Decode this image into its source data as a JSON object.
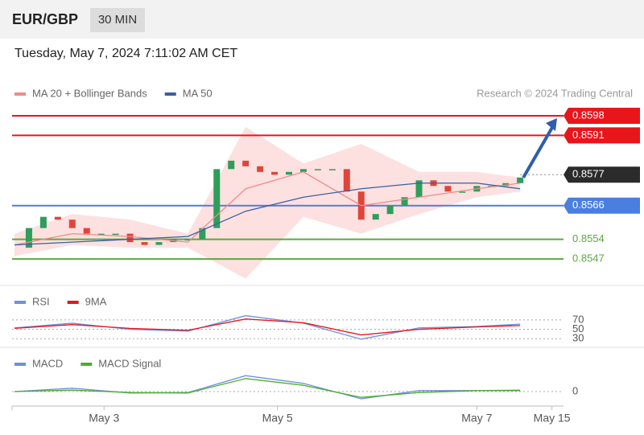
{
  "header": {
    "symbol": "EUR/GBP",
    "timeframe": "30 MIN",
    "timestamp": "Tuesday, May 7, 2024 7:11:02 AM CET"
  },
  "chart_data": [
    {
      "type": "candlestick",
      "source": "Research © 2024 Trading Central",
      "x": [
        0,
        1,
        2,
        3,
        4,
        5,
        6,
        7,
        8,
        9,
        10,
        11,
        12,
        13,
        14,
        15,
        16,
        17,
        18,
        19,
        20,
        21,
        22,
        23,
        24,
        25,
        26,
        27,
        28,
        29,
        30,
        31,
        32,
        33,
        34,
        35
      ],
      "close": [
        0.8551,
        0.8558,
        0.8562,
        0.8561,
        0.8558,
        0.8556,
        0.8556,
        0.8556,
        0.8553,
        0.8552,
        0.8553,
        0.8554,
        0.8554,
        0.8558,
        0.8579,
        0.8582,
        0.858,
        0.8578,
        0.8577,
        0.8578,
        0.8579,
        0.8579,
        0.8579,
        0.8571,
        0.8561,
        0.8563,
        0.8566,
        0.8569,
        0.8575,
        0.8573,
        0.8571,
        0.8571,
        0.8573,
        0.8573,
        0.8574,
        0.8576
      ],
      "up_color": "#2e9e5b",
      "down_color": "#e0453a",
      "series": [
        {
          "name": "MA 20 + Bollinger Bands",
          "color": "#f08a8a",
          "band_color": "#fde0e0",
          "x": [
            0,
            4,
            8,
            12,
            16,
            20,
            24,
            28,
            32,
            35
          ],
          "values": [
            0.8552,
            0.8556,
            0.8555,
            0.8553,
            0.8572,
            0.8578,
            0.8566,
            0.8569,
            0.8572,
            0.8574
          ],
          "upper": [
            0.8556,
            0.8563,
            0.8561,
            0.8556,
            0.8594,
            0.8581,
            0.8588,
            0.8578,
            0.8578,
            0.8576
          ],
          "lower": [
            0.8548,
            0.8552,
            0.8551,
            0.8551,
            0.854,
            0.8562,
            0.8556,
            0.8563,
            0.8569,
            0.8571
          ]
        },
        {
          "name": "MA 50",
          "color": "#3a5fa0",
          "x": [
            0,
            4,
            8,
            12,
            16,
            20,
            24,
            28,
            32,
            35
          ],
          "values": [
            0.8552,
            0.8553,
            0.8554,
            0.8555,
            0.8564,
            0.8569,
            0.8572,
            0.8574,
            0.8574,
            0.8572
          ]
        }
      ],
      "levels": [
        {
          "value": 0.8598,
          "color": "#e8161b",
          "badge": true,
          "dash": false
        },
        {
          "value": 0.8591,
          "color": "#e8161b",
          "badge": true,
          "dash": false
        },
        {
          "value": 0.8577,
          "color": "#2b2b2b",
          "badge": true,
          "dash": true
        },
        {
          "value": 0.8566,
          "color": "#4a7fe0",
          "badge": true,
          "dash": false
        },
        {
          "value": 0.8554,
          "color": "#5aaa3c",
          "badge": false,
          "dash": false
        },
        {
          "value": 0.8547,
          "color": "#5aaa3c",
          "badge": false,
          "dash": false
        }
      ],
      "xlim": [
        0,
        38
      ],
      "ylim": [
        0.8539,
        0.8602
      ],
      "xticks": [
        {
          "value": 6.2,
          "label": "May 3"
        },
        {
          "value": 18.2,
          "label": "May 5"
        },
        {
          "value": 32,
          "label": "May 7"
        },
        {
          "value": 37.2,
          "label": "May 15"
        }
      ]
    },
    {
      "type": "line",
      "xlim": [
        0,
        38
      ],
      "ylim": [
        15,
        92
      ],
      "yticks": [
        70,
        50,
        30
      ],
      "series": [
        {
          "name": "RSI",
          "color": "#6f8fe0",
          "x": [
            0,
            4,
            8,
            12,
            16,
            20,
            24,
            28,
            32,
            35
          ],
          "values": [
            53,
            63,
            50,
            46,
            79,
            63,
            29,
            53,
            56,
            61
          ]
        },
        {
          "name": "9MA",
          "color": "#e8161b",
          "x": [
            0,
            4,
            8,
            12,
            16,
            20,
            24,
            28,
            32,
            35
          ],
          "values": [
            52,
            60,
            52,
            48,
            72,
            64,
            38,
            50,
            55,
            58
          ]
        }
      ]
    },
    {
      "type": "line",
      "xlim": [
        0,
        38
      ],
      "ylim": [
        -0.0003,
        0.0007
      ],
      "yticks": [
        0
      ],
      "series": [
        {
          "name": "MACD",
          "color": "#6f8fe0",
          "x": [
            0,
            4,
            8,
            12,
            16,
            20,
            24,
            28,
            32,
            35
          ],
          "values": [
            0,
            7e-05,
            -3e-05,
            -2e-05,
            0.00033,
            0.00017,
            -0.00015,
            2e-05,
            2e-05,
            3e-05
          ]
        },
        {
          "name": "MACD Signal",
          "color": "#4caf2a",
          "x": [
            0,
            4,
            8,
            12,
            16,
            20,
            24,
            28,
            32,
            35
          ],
          "values": [
            0,
            3e-05,
            -2e-05,
            -3e-05,
            0.00027,
            0.00013,
            -0.00012,
            -2e-05,
            2e-05,
            2e-05
          ]
        }
      ]
    }
  ]
}
